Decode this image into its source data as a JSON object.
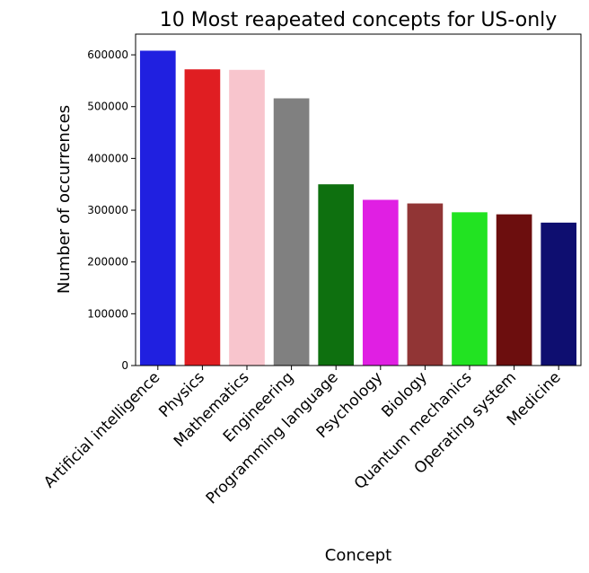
{
  "chart_data": {
    "type": "bar",
    "title": "10 Most reapeated concepts for US-only",
    "xlabel": "Concept",
    "ylabel": "Number of occurrences",
    "ylim": [
      0,
      640000
    ],
    "yticks": [
      0,
      100000,
      200000,
      300000,
      400000,
      500000,
      600000
    ],
    "grid": false,
    "categories": [
      "Artificial intelligence",
      "Physics",
      "Mathematics",
      "Engineering",
      "Programming language",
      "Psychology",
      "Biology",
      "Quantum mechanics",
      "Operating system",
      "Medicine"
    ],
    "values": [
      608000,
      572000,
      571000,
      516000,
      350000,
      320000,
      313000,
      296000,
      292000,
      276000
    ],
    "colors": [
      "#2020e0",
      "#e01e22",
      "#f8c5cd",
      "#808080",
      "#0e700f",
      "#e01fe3",
      "#913535",
      "#22e322",
      "#6c0e0e",
      "#0e0e70"
    ]
  }
}
